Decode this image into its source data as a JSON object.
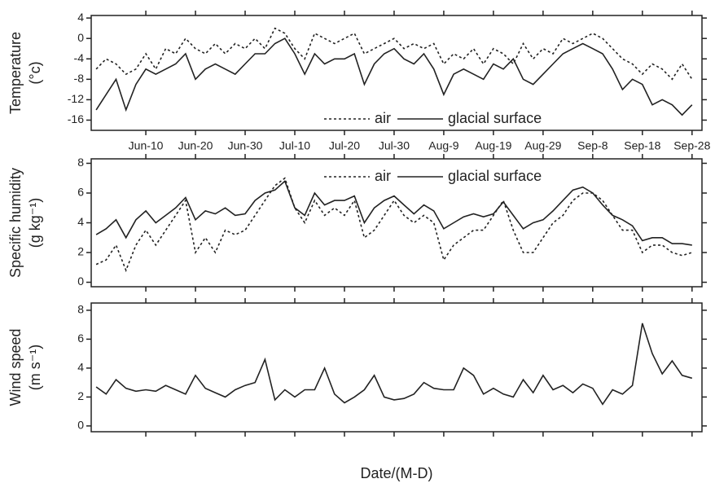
{
  "chart_data": [
    {
      "type": "line",
      "ylabel": [
        "Temperature",
        "(°c)"
      ],
      "x": [
        0,
        2,
        4,
        6,
        8,
        10,
        12,
        14,
        16,
        18,
        20,
        22,
        24,
        26,
        28,
        30,
        32,
        34,
        36,
        38,
        40,
        42,
        44,
        46,
        48,
        50,
        52,
        54,
        56,
        58,
        60,
        62,
        64,
        66,
        68,
        70,
        72,
        74,
        76,
        78,
        80,
        82,
        84,
        86,
        88,
        90,
        92,
        94,
        96,
        98,
        100,
        102,
        104,
        106,
        108,
        110,
        112,
        114,
        116,
        118,
        120
      ],
      "series": [
        {
          "name": "air",
          "color": "#222",
          "dash": "dotted",
          "values": [
            -6,
            -4,
            -5,
            -7,
            -6,
            -3,
            -6,
            -2,
            -3,
            0,
            -2,
            -3,
            -1,
            -3,
            -1,
            -2,
            0,
            -2,
            2,
            1,
            -2,
            -4,
            1,
            0,
            -1,
            0,
            1,
            -3,
            -2,
            -1,
            0,
            -2,
            -1,
            -2,
            -1,
            -5,
            -3,
            -4,
            -2,
            -5,
            -2,
            -3,
            -5,
            -1,
            -4,
            -2,
            -3,
            0,
            -1,
            0,
            1,
            0,
            -2,
            -4,
            -5,
            -7,
            -5,
            -6,
            -8,
            -5,
            -8
          ]
        },
        {
          "name": "glacial surface",
          "color": "#222",
          "dash": "solid",
          "values": [
            -14,
            -11,
            -8,
            -14,
            -9,
            -6,
            -7,
            -6,
            -5,
            -3,
            -8,
            -6,
            -5,
            -6,
            -7,
            -5,
            -3,
            -3,
            -1,
            0,
            -3,
            -7,
            -3,
            -5,
            -4,
            -4,
            -3,
            -9,
            -5,
            -3,
            -2,
            -4,
            -5,
            -3,
            -6,
            -11,
            -7,
            -6,
            -7,
            -8,
            -5,
            -6,
            -4,
            -8,
            -9,
            -7,
            -5,
            -3,
            -2,
            -1,
            -2,
            -3,
            -6,
            -10,
            -8,
            -9,
            -13,
            -12,
            -13,
            -15,
            -13
          ]
        }
      ],
      "xlim": [
        -1,
        122
      ],
      "ylim": [
        -18,
        4.5
      ],
      "yticks": [
        4,
        0,
        -4,
        -8,
        -12,
        -16
      ],
      "xticks": [
        {
          "value": 10,
          "label": "Jun-10"
        },
        {
          "value": 20,
          "label": "Jun-20"
        },
        {
          "value": 30,
          "label": "Jun-30"
        },
        {
          "value": 40,
          "label": "Jul-10"
        },
        {
          "value": 50,
          "label": "Jul-20"
        },
        {
          "value": 60,
          "label": "Jul-30"
        },
        {
          "value": 70,
          "label": "Aug-9"
        },
        {
          "value": 80,
          "label": "Aug-19"
        },
        {
          "value": 90,
          "label": "Aug-29"
        },
        {
          "value": 100,
          "label": "Sep-8"
        },
        {
          "value": 110,
          "label": "Sep-18"
        },
        {
          "value": 120,
          "label": "Sep-28"
        }
      ],
      "legend": "lower"
    },
    {
      "type": "line",
      "ylabel": [
        "Specific humidity",
        "(g kg⁻¹)"
      ],
      "x": [
        0,
        2,
        4,
        6,
        8,
        10,
        12,
        14,
        16,
        18,
        20,
        22,
        24,
        26,
        28,
        30,
        32,
        34,
        36,
        38,
        40,
        42,
        44,
        46,
        48,
        50,
        52,
        54,
        56,
        58,
        60,
        62,
        64,
        66,
        68,
        70,
        72,
        74,
        76,
        78,
        80,
        82,
        84,
        86,
        88,
        90,
        92,
        94,
        96,
        98,
        100,
        102,
        104,
        106,
        108,
        110,
        112,
        114,
        116,
        118,
        120
      ],
      "series": [
        {
          "name": "air",
          "color": "#222",
          "dash": "dotted",
          "values": [
            1.2,
            1.5,
            2.5,
            0.8,
            2.5,
            3.5,
            2.5,
            3.5,
            4.5,
            5.5,
            2,
            3,
            2,
            3.5,
            3.2,
            3.5,
            4.5,
            5.5,
            6.5,
            7,
            5,
            4,
            5.5,
            4.5,
            5,
            4.5,
            5.5,
            3,
            3.5,
            4.5,
            5.5,
            4.5,
            4,
            4.5,
            4,
            1.5,
            2.5,
            3,
            3.5,
            3.5,
            4.5,
            5.5,
            3.5,
            2,
            2,
            3,
            4,
            4.5,
            5.5,
            6,
            6,
            5.5,
            4.5,
            3.5,
            3.5,
            2,
            2.5,
            2.5,
            2,
            1.8,
            2
          ]
        },
        {
          "name": "glacial surface",
          "color": "#222",
          "dash": "solid",
          "values": [
            3.2,
            3.6,
            4.2,
            3,
            4.2,
            4.8,
            4,
            4.5,
            5,
            5.7,
            4.2,
            4.8,
            4.6,
            5,
            4.5,
            4.6,
            5.5,
            6,
            6.2,
            6.8,
            5,
            4.5,
            6,
            5.2,
            5.5,
            5.5,
            5.8,
            4,
            5,
            5.5,
            5.8,
            5.2,
            4.6,
            5.2,
            4.8,
            3.6,
            4,
            4.4,
            4.6,
            4.4,
            4.6,
            5.4,
            4.5,
            3.6,
            4,
            4.2,
            4.8,
            5.5,
            6.2,
            6.4,
            6,
            5.2,
            4.5,
            4.2,
            3.8,
            2.8,
            3,
            3,
            2.6,
            2.6,
            2.5
          ]
        }
      ],
      "xlim": [
        -1,
        122
      ],
      "ylim": [
        -0.3,
        8.3
      ],
      "yticks": [
        0,
        2,
        4,
        6,
        8
      ],
      "xticks": [
        10,
        20,
        30,
        40,
        50,
        60,
        70,
        80,
        90,
        100,
        110,
        120
      ],
      "legend": "upper"
    },
    {
      "type": "line",
      "ylabel": [
        "Wind speed",
        "(m s⁻¹)"
      ],
      "xlabel": "Date/(M-D)",
      "x": [
        0,
        2,
        4,
        6,
        8,
        10,
        12,
        14,
        16,
        18,
        20,
        22,
        24,
        26,
        28,
        30,
        32,
        34,
        36,
        38,
        40,
        42,
        44,
        46,
        48,
        50,
        52,
        54,
        56,
        58,
        60,
        62,
        64,
        66,
        68,
        70,
        72,
        74,
        76,
        78,
        80,
        82,
        84,
        86,
        88,
        90,
        92,
        94,
        96,
        98,
        100,
        102,
        104,
        106,
        108,
        110,
        112,
        114,
        116,
        118,
        120
      ],
      "series": [
        {
          "color": "#222",
          "dash": "solid",
          "values": [
            2.7,
            2.2,
            3.2,
            2.6,
            2.4,
            2.5,
            2.4,
            2.8,
            2.5,
            2.2,
            3.5,
            2.6,
            2.3,
            2,
            2.5,
            2.8,
            3,
            4.6,
            1.8,
            2.5,
            2,
            2.5,
            2.5,
            4,
            2.2,
            1.6,
            2,
            2.5,
            3.5,
            2,
            1.8,
            1.9,
            2.2,
            3,
            2.6,
            2.5,
            2.5,
            4,
            3.5,
            2.2,
            2.6,
            2.2,
            2,
            3.2,
            2.3,
            3.5,
            2.5,
            2.8,
            2.3,
            2.9,
            2.6,
            1.5,
            2.5,
            2.2,
            2.8,
            7.1,
            5,
            3.6,
            4.5,
            3.5,
            3.3
          ]
        }
      ],
      "xlim": [
        -1,
        122
      ],
      "ylim": [
        -0.4,
        8.5
      ],
      "yticks": [
        0,
        2,
        4,
        6,
        8
      ],
      "xticks": [
        10,
        20,
        30,
        40,
        50,
        60,
        70,
        80,
        90,
        100,
        110,
        120
      ]
    }
  ]
}
